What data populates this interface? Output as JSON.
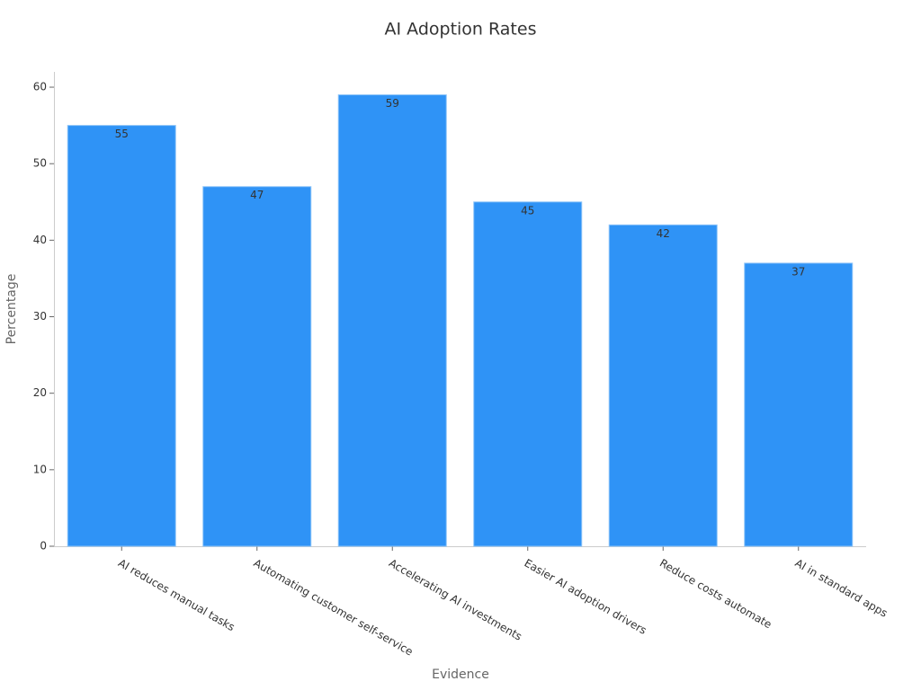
{
  "chart_data": {
    "type": "bar",
    "title": "AI Adoption Rates",
    "x_label": "Evidence",
    "y_label": "Percentage",
    "categories": [
      "AI reduces manual tasks",
      "Automating customer self-service",
      "Accelerating AI investments",
      "Easier AI adoption drivers",
      "Reduce costs automate",
      "AI in standard apps"
    ],
    "values": [
      55,
      47,
      59,
      45,
      42,
      37
    ],
    "color": "#2f93f6",
    "ylim": [
      0,
      62
    ],
    "yticks": [
      0,
      10,
      20,
      30,
      40,
      50,
      60
    ]
  }
}
